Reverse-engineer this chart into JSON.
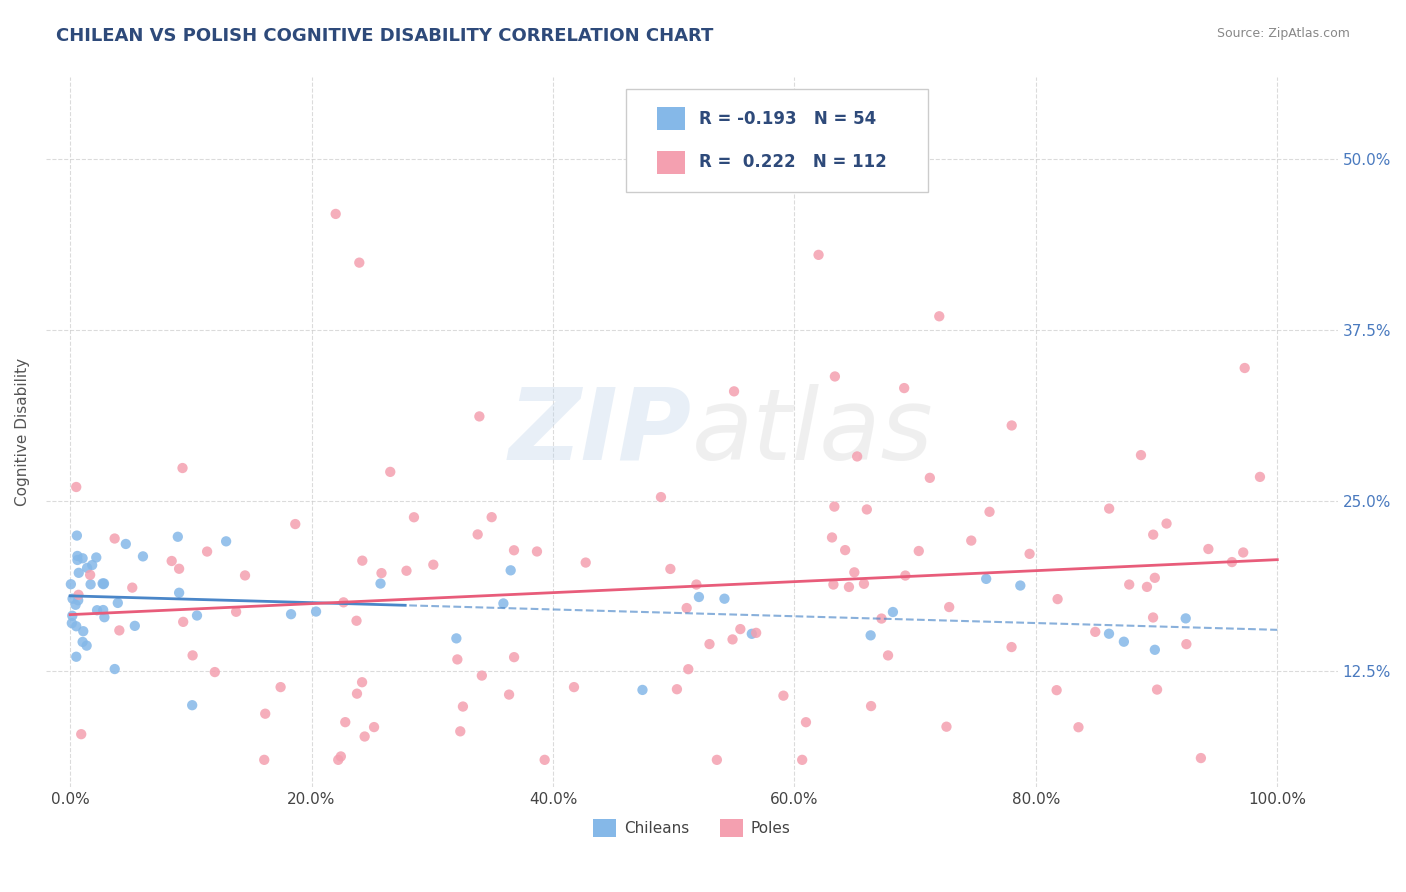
{
  "title": "CHILEAN VS POLISH COGNITIVE DISABILITY CORRELATION CHART",
  "source": "Source: ZipAtlas.com",
  "ylabel": "Cognitive Disability",
  "title_color": "#2e4a7a",
  "title_fontsize": 13,
  "bg_color": "#ffffff",
  "plot_bg_color": "#ffffff",
  "grid_color": "#cccccc",
  "legend_R1": "-0.193",
  "legend_N1": "54",
  "legend_R2": "0.222",
  "legend_N2": "112",
  "chilean_color": "#85b8e8",
  "polish_color": "#f4a0b0",
  "trend_chilean_color": "#4a86c8",
  "trend_polish_color": "#e85c7a",
  "x_tick_labels": [
    "0.0%",
    "20.0%",
    "40.0%",
    "60.0%",
    "80.0%",
    "100.0%"
  ],
  "y_ticks": [
    0.125,
    0.25,
    0.375,
    0.5
  ],
  "y_tick_labels": [
    "12.5%",
    "25.0%",
    "37.5%",
    "50.0%"
  ],
  "xlim": [
    -2,
    105
  ],
  "ylim": [
    0.04,
    0.56
  ]
}
